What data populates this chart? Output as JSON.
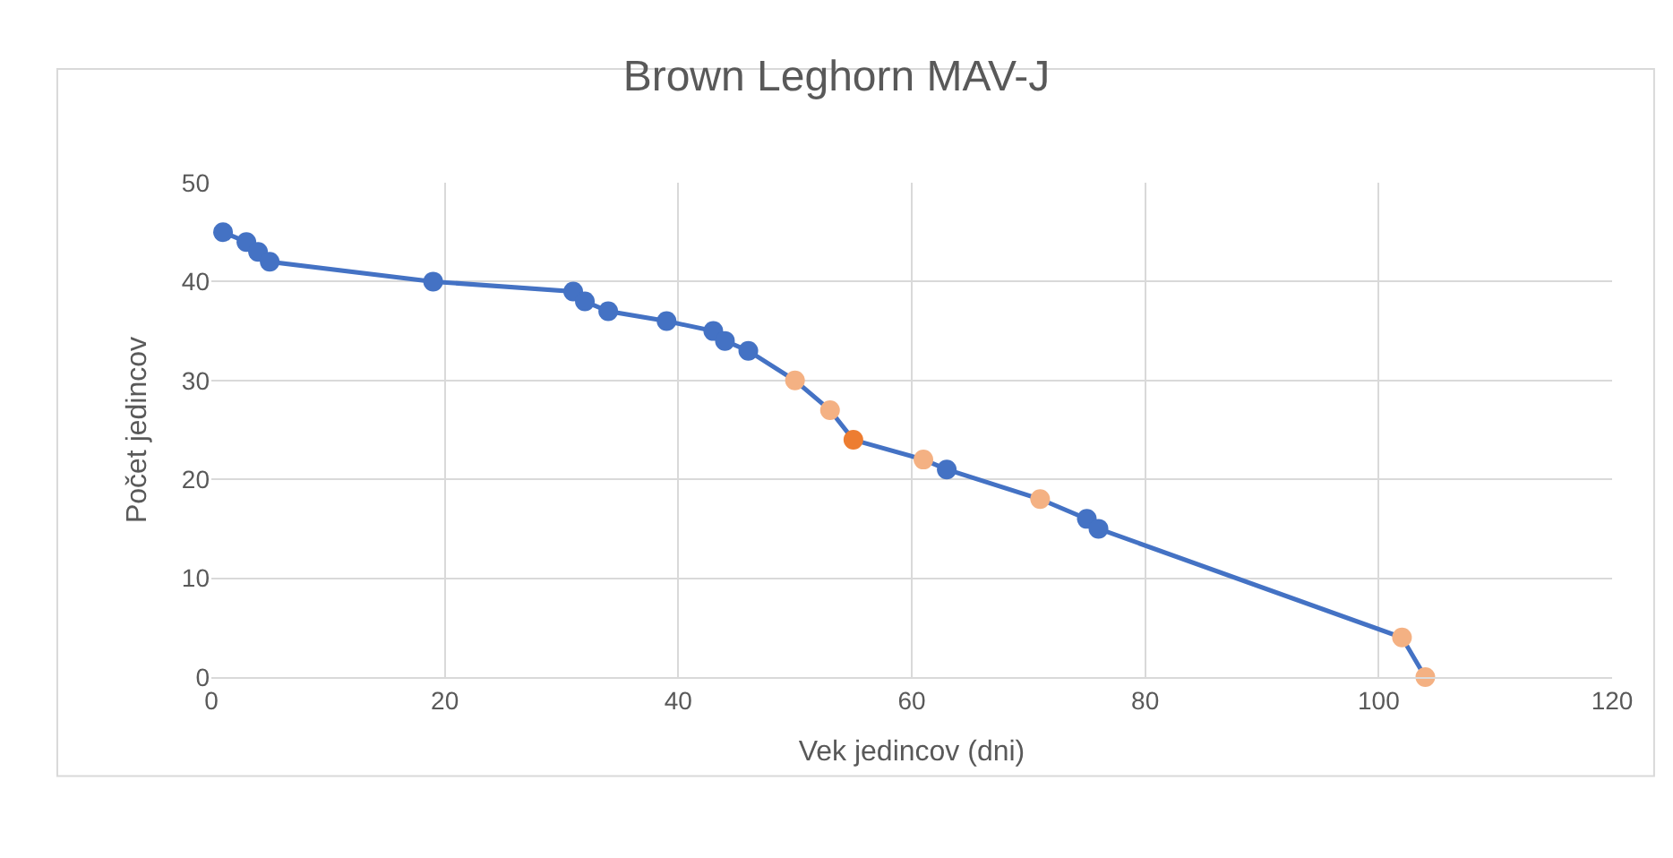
{
  "chart_data": {
    "type": "line",
    "title": "Brown Leghorn MAV-J",
    "xlabel": "Vek jedincov (dni)",
    "ylabel": "Počet jedincov",
    "x": [
      1,
      3,
      4,
      5,
      19,
      31,
      32,
      34,
      39,
      43,
      44,
      46,
      50,
      53,
      55,
      61,
      63,
      71,
      75,
      76,
      102,
      104
    ],
    "series": [
      {
        "color": "#4472c4",
        "values": [
          45,
          44,
          43,
          42,
          40,
          39,
          38,
          37,
          36,
          35,
          34,
          33,
          30,
          27,
          24,
          22,
          21,
          18,
          16,
          15,
          4,
          0
        ],
        "colors": [
          "#4472c4",
          "#4472c4",
          "#4472c4",
          "#4472c4",
          "#4472c4",
          "#4472c4",
          "#4472c4",
          "#4472c4",
          "#4472c4",
          "#4472c4",
          "#4472c4",
          "#4472c4",
          "#f4b183",
          "#f4b183",
          "#ed7d31",
          "#f4b183",
          "#4472c4",
          "#f4b183",
          "#4472c4",
          "#4472c4",
          "#f4b183",
          "#f4b183"
        ]
      }
    ],
    "xlim": [
      0,
      120
    ],
    "xticks": [
      0,
      20,
      40,
      60,
      80,
      100,
      120
    ],
    "ylim": [
      0,
      50
    ],
    "yticks": [
      0,
      10,
      20,
      30,
      40,
      50
    ],
    "grid": true,
    "marker": "circle",
    "line_style": "solid"
  }
}
